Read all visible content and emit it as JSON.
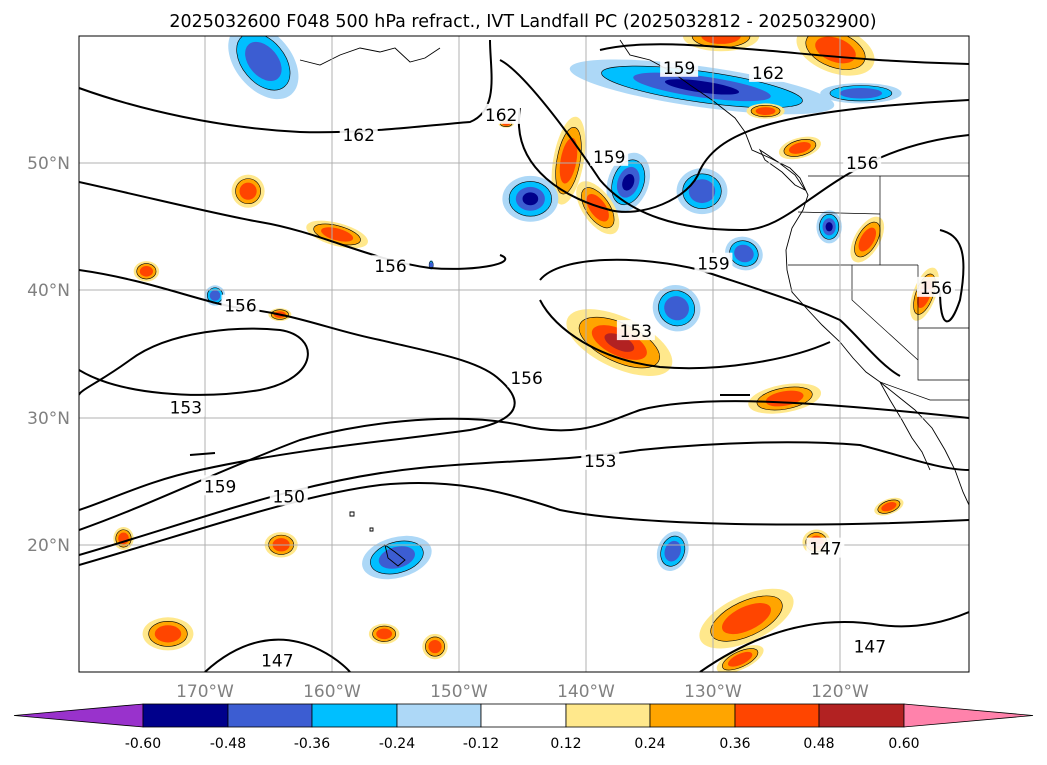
{
  "title": "2025032600 F048 500 hPa refract., IVT Landfall PC (2025032812 - 2025032900)",
  "map": {
    "lon_ticks": [
      {
        "value": -170,
        "label": "170°W"
      },
      {
        "value": -160,
        "label": "160°W"
      },
      {
        "value": -150,
        "label": "150°W"
      },
      {
        "value": -140,
        "label": "140°W"
      },
      {
        "value": -130,
        "label": "130°W"
      },
      {
        "value": -120,
        "label": "120°W"
      }
    ],
    "lat_ticks": [
      {
        "value": 20,
        "label": "20°N"
      },
      {
        "value": 30,
        "label": "30°N"
      },
      {
        "value": 40,
        "label": "40°N"
      },
      {
        "value": 50,
        "label": "50°N"
      }
    ],
    "contour_labels": [
      {
        "text": "162",
        "lon": -158,
        "lat": 52.2
      },
      {
        "text": "162",
        "lon": -146.8,
        "lat": 53.8
      },
      {
        "text": "159",
        "lon": -138.3,
        "lat": 50.5
      },
      {
        "text": "159",
        "lon": -132.8,
        "lat": 57.5
      },
      {
        "text": "162",
        "lon": -125.8,
        "lat": 57.1
      },
      {
        "text": "156",
        "lon": -118.4,
        "lat": 50.0
      },
      {
        "text": "159",
        "lon": -130.1,
        "lat": 42.1
      },
      {
        "text": "156",
        "lon": -155.5,
        "lat": 41.9
      },
      {
        "text": "156",
        "lon": -167.3,
        "lat": 38.8
      },
      {
        "text": "153",
        "lon": -136.2,
        "lat": 36.8
      },
      {
        "text": "156",
        "lon": -144.8,
        "lat": 33.1
      },
      {
        "text": "153",
        "lon": -171.6,
        "lat": 30.8
      },
      {
        "text": "159",
        "lon": -168.9,
        "lat": 24.6
      },
      {
        "text": "150",
        "lon": -163.5,
        "lat": 23.8
      },
      {
        "text": "153",
        "lon": -139.0,
        "lat": 26.6
      },
      {
        "text": "147",
        "lon": -121.3,
        "lat": 19.7
      },
      {
        "text": "147",
        "lon": -117.8,
        "lat": 12.0
      },
      {
        "text": "147",
        "lon": -164.4,
        "lat": 10.9
      },
      {
        "text": "156",
        "lon": -112.6,
        "lat": 40.2
      }
    ],
    "shaded_features": [
      {
        "lon": -165.5,
        "lat": 58.0,
        "rx": 2.2,
        "ry": 3.4,
        "rot": -40,
        "v": -0.3
      },
      {
        "lon": -131.0,
        "lat": 56.0,
        "rx": 10.5,
        "ry": 1.6,
        "rot": 8,
        "v": -0.45
      },
      {
        "lon": -118.5,
        "lat": 55.5,
        "rx": 3.2,
        "ry": 0.8,
        "rot": 0,
        "v": -0.3
      },
      {
        "lon": -141.5,
        "lat": 50.2,
        "rx": 1.2,
        "ry": 3.5,
        "rot": 10,
        "v": 0.3
      },
      {
        "lon": -144.5,
        "lat": 47.2,
        "rx": 2.2,
        "ry": 1.8,
        "rot": 0,
        "v": -0.45
      },
      {
        "lon": -136.8,
        "lat": 48.5,
        "rx": 1.6,
        "ry": 2.4,
        "rot": 20,
        "v": -0.5
      },
      {
        "lon": -139.2,
        "lat": 46.5,
        "rx": 1.2,
        "ry": 2.4,
        "rot": -35,
        "v": 0.3
      },
      {
        "lon": -131.0,
        "lat": 47.8,
        "rx": 2.0,
        "ry": 1.8,
        "rot": 0,
        "v": -0.3
      },
      {
        "lon": -127.7,
        "lat": 42.9,
        "rx": 1.5,
        "ry": 1.3,
        "rot": 20,
        "v": -0.36
      },
      {
        "lon": -133.0,
        "lat": 38.6,
        "rx": 1.9,
        "ry": 1.8,
        "rot": 30,
        "v": -0.4
      },
      {
        "lon": -137.5,
        "lat": 35.9,
        "rx": 4.5,
        "ry": 2.0,
        "rot": 25,
        "v": 0.42
      },
      {
        "lon": -121.0,
        "lat": 45.0,
        "rx": 1.0,
        "ry": 1.3,
        "rot": 0,
        "v": -0.5
      },
      {
        "lon": -118.0,
        "lat": 44.0,
        "rx": 1.0,
        "ry": 2.0,
        "rot": 30,
        "v": 0.4
      },
      {
        "lon": -113.5,
        "lat": 39.7,
        "rx": 0.9,
        "ry": 2.2,
        "rot": 20,
        "v": 0.3
      },
      {
        "lon": -124.5,
        "lat": 31.5,
        "rx": 2.9,
        "ry": 1.1,
        "rot": -10,
        "v": 0.3
      },
      {
        "lon": -123.3,
        "lat": 51.2,
        "rx": 1.7,
        "ry": 0.8,
        "rot": -15,
        "v": 0.3
      },
      {
        "lon": -126.0,
        "lat": 54.1,
        "rx": 1.5,
        "ry": 0.6,
        "rot": 0,
        "v": 0.3
      },
      {
        "lon": -129.5,
        "lat": 60.0,
        "rx": 3.0,
        "ry": 1.2,
        "rot": 0,
        "v": 0.3
      },
      {
        "lon": -120.5,
        "lat": 58.9,
        "rx": 3.2,
        "ry": 1.8,
        "rot": 20,
        "v": 0.38
      },
      {
        "lon": -166.7,
        "lat": 47.8,
        "rx": 1.3,
        "ry": 1.3,
        "rot": 0,
        "v": 0.3
      },
      {
        "lon": -159.7,
        "lat": 44.4,
        "rx": 2.5,
        "ry": 0.9,
        "rot": 15,
        "v": 0.3
      },
      {
        "lon": -174.7,
        "lat": 41.5,
        "rx": 1.0,
        "ry": 0.8,
        "rot": 0,
        "v": 0.3
      },
      {
        "lon": -169.3,
        "lat": 39.6,
        "rx": 0.8,
        "ry": 0.8,
        "rot": 0,
        "v": -0.3
      },
      {
        "lon": -164.2,
        "lat": 38.1,
        "rx": 0.9,
        "ry": 0.5,
        "rot": 0,
        "v": 0.3
      },
      {
        "lon": -164.1,
        "lat": 20.0,
        "rx": 1.3,
        "ry": 1.0,
        "rot": 0,
        "v": 0.3
      },
      {
        "lon": -155.0,
        "lat": 19.0,
        "rx": 2.8,
        "ry": 1.6,
        "rot": -15,
        "v": -0.36
      },
      {
        "lon": -133.3,
        "lat": 19.5,
        "rx": 1.2,
        "ry": 1.6,
        "rot": 20,
        "v": -0.3
      },
      {
        "lon": -122.0,
        "lat": 20.2,
        "rx": 1.1,
        "ry": 1.0,
        "rot": 0,
        "v": 0.3
      },
      {
        "lon": -116.3,
        "lat": 23.0,
        "rx": 1.2,
        "ry": 0.6,
        "rot": -20,
        "v": 0.3
      },
      {
        "lon": -127.5,
        "lat": 14.2,
        "rx": 4.0,
        "ry": 1.8,
        "rot": -25,
        "v": 0.4
      },
      {
        "lon": -128.0,
        "lat": 11.0,
        "rx": 2.0,
        "ry": 0.8,
        "rot": -25,
        "v": 0.3
      },
      {
        "lon": -173.0,
        "lat": 13.0,
        "rx": 2.0,
        "ry": 1.3,
        "rot": 0,
        "v": 0.38
      },
      {
        "lon": -156.0,
        "lat": 13.0,
        "rx": 1.2,
        "ry": 0.8,
        "rot": 0,
        "v": 0.3
      },
      {
        "lon": -152.0,
        "lat": 12.0,
        "rx": 1.0,
        "ry": 1.0,
        "rot": 0,
        "v": 0.3
      },
      {
        "lon": -176.5,
        "lat": 20.5,
        "rx": 0.8,
        "ry": 0.9,
        "rot": 0,
        "v": 0.3
      },
      {
        "lon": -152.3,
        "lat": 42.0,
        "rx": 0.2,
        "ry": 0.4,
        "rot": 0,
        "v": -0.3
      },
      {
        "lon": -146.4,
        "lat": 53.1,
        "rx": 0.6,
        "ry": 0.3,
        "rot": 0,
        "v": 0.3
      }
    ],
    "colors": {
      "ocean": "#ffffff",
      "contour": "#000000",
      "grid": "#b0b0b0",
      "tick_label": "#808080"
    }
  },
  "colorbar": {
    "levels": [
      "-0.60",
      "-0.48",
      "-0.36",
      "-0.24",
      "-0.12",
      "0.12",
      "0.24",
      "0.36",
      "0.48",
      "0.60"
    ],
    "colors": [
      "#9932cc",
      "#00008b",
      "#3c5dd2",
      "#00bfff",
      "#add8f7",
      "#ffffff",
      "#ffe88c",
      "#ffa500",
      "#ff4500",
      "#b22222",
      "#ff82ab"
    ]
  }
}
